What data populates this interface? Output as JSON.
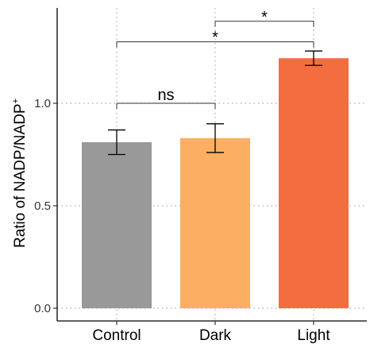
{
  "chart_data": {
    "type": "bar",
    "title": "",
    "xlabel": "",
    "ylabel": "Ratio of NADP/NADP",
    "ylabel_superscript": "+",
    "categories": [
      "Control",
      "Dark",
      "Light"
    ],
    "values": [
      0.81,
      0.83,
      1.22
    ],
    "error": [
      0.06,
      0.07,
      0.035
    ],
    "colors": [
      "#999999",
      "#fcae62",
      "#f36d40"
    ],
    "ylim": [
      0,
      1.47
    ],
    "yticks": [
      0.0,
      0.5,
      1.0
    ],
    "ytick_labels": [
      "0.0",
      "0.5",
      "1.0"
    ],
    "grid": "dotted",
    "annotations": [
      {
        "from": "Control",
        "to": "Dark",
        "label": "ns",
        "y": 1.0
      },
      {
        "from": "Control",
        "to": "Light",
        "label": "*",
        "y": 1.3
      },
      {
        "from": "Dark",
        "to": "Light",
        "label": "*",
        "y": 1.4
      }
    ]
  }
}
